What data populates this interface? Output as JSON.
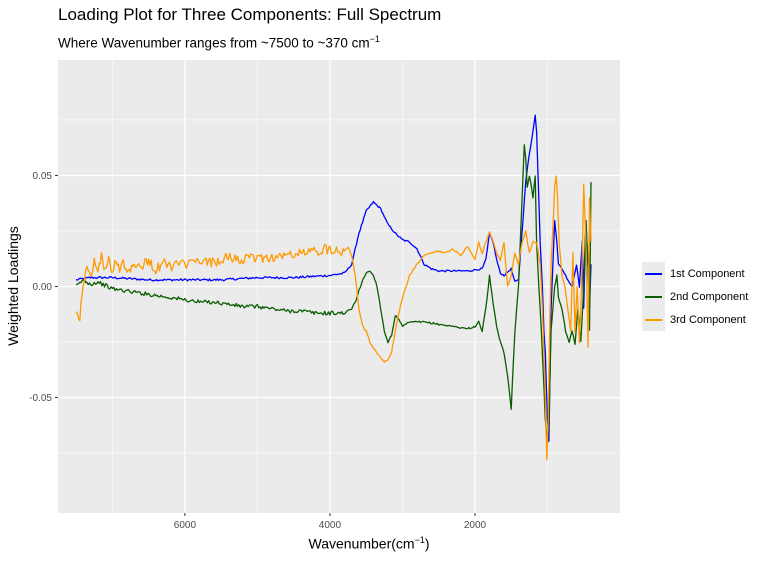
{
  "title": "Loading Plot for Three Components: Full Spectrum",
  "subtitle_main": "Where Wavenumber ranges from ~7500 to ~370 cm",
  "subtitle_sup": "−1",
  "xlabel_main": "Wavenumber(cm",
  "xlabel_sup": "−1",
  "xlabel_end": ")",
  "legend": {
    "items": [
      {
        "label": "1st Component",
        "color": "#0000ff"
      },
      {
        "label": "2nd Component",
        "color": "#0a5d00"
      },
      {
        "label": "3rd Component",
        "color": "#ff9900"
      }
    ]
  },
  "chart_data": {
    "type": "line",
    "ylabel": "Weighted Loadings",
    "x_reversed": true,
    "xlim": [
      7750,
      0
    ],
    "ylim": [
      -0.102,
      0.102
    ],
    "x_ticks": [
      {
        "value": 6000,
        "label": "6000"
      },
      {
        "value": 4000,
        "label": "4000"
      },
      {
        "value": 2000,
        "label": "2000"
      }
    ],
    "y_ticks": [
      {
        "value": 0.05,
        "label": "0.05"
      },
      {
        "value": 0.0,
        "label": "0.00"
      },
      {
        "value": -0.05,
        "label": "-0.05"
      }
    ],
    "grid": true,
    "legend_position": "right",
    "series": [
      {
        "name": "1st Component",
        "color": "#0000ff",
        "points": [
          [
            7500,
            0.003
          ],
          [
            7300,
            0.004
          ],
          [
            7000,
            0.004
          ],
          [
            6500,
            0.003
          ],
          [
            6000,
            0.003
          ],
          [
            5500,
            0.003
          ],
          [
            5000,
            0.004
          ],
          [
            4500,
            0.004
          ],
          [
            4000,
            0.005
          ],
          [
            3800,
            0.006
          ],
          [
            3700,
            0.01
          ],
          [
            3600,
            0.024
          ],
          [
            3500,
            0.034
          ],
          [
            3400,
            0.038
          ],
          [
            3300,
            0.035
          ],
          [
            3200,
            0.028
          ],
          [
            3100,
            0.024
          ],
          [
            3000,
            0.021
          ],
          [
            2900,
            0.02
          ],
          [
            2800,
            0.017
          ],
          [
            2700,
            0.01
          ],
          [
            2600,
            0.008
          ],
          [
            2500,
            0.007
          ],
          [
            2300,
            0.007
          ],
          [
            2100,
            0.007
          ],
          [
            1900,
            0.008
          ],
          [
            1850,
            0.012
          ],
          [
            1800,
            0.024
          ],
          [
            1750,
            0.02
          ],
          [
            1700,
            0.012
          ],
          [
            1650,
            0.006
          ],
          [
            1600,
            0.005
          ],
          [
            1500,
            0.008
          ],
          [
            1450,
            0.002
          ],
          [
            1400,
            0.003
          ],
          [
            1300,
            0.047
          ],
          [
            1250,
            0.06
          ],
          [
            1200,
            0.07
          ],
          [
            1170,
            0.077
          ],
          [
            1150,
            0.07
          ],
          [
            1120,
            0.04
          ],
          [
            1100,
            0.02
          ],
          [
            1070,
            0.0
          ],
          [
            1050,
            -0.02
          ],
          [
            1030,
            -0.03
          ],
          [
            1000,
            -0.06
          ],
          [
            980,
            -0.07
          ],
          [
            950,
            -0.01
          ],
          [
            900,
            0.03
          ],
          [
            870,
            0.02
          ],
          [
            850,
            0.01
          ],
          [
            800,
            0.008
          ],
          [
            750,
            0.005
          ],
          [
            700,
            0.002
          ],
          [
            660,
            0.0
          ],
          [
            600,
            0.01
          ],
          [
            560,
            0.0
          ],
          [
            520,
            0.02
          ],
          [
            500,
            -0.01
          ],
          [
            470,
            0.03
          ],
          [
            440,
            0.008
          ],
          [
            420,
            -0.01
          ],
          [
            400,
            0.01
          ]
        ]
      },
      {
        "name": "2nd Component",
        "color": "#0a5d00",
        "points": [
          [
            7500,
            0.0
          ],
          [
            7400,
            0.003
          ],
          [
            7300,
            0.001
          ],
          [
            7200,
            0.002
          ],
          [
            7000,
            -0.001
          ],
          [
            6800,
            -0.002
          ],
          [
            6600,
            -0.003
          ],
          [
            6400,
            -0.004
          ],
          [
            6200,
            -0.005
          ],
          [
            6000,
            -0.006
          ],
          [
            5800,
            -0.007
          ],
          [
            5600,
            -0.007
          ],
          [
            5400,
            -0.008
          ],
          [
            5200,
            -0.009
          ],
          [
            5000,
            -0.009
          ],
          [
            4800,
            -0.01
          ],
          [
            4600,
            -0.011
          ],
          [
            4400,
            -0.011
          ],
          [
            4200,
            -0.012
          ],
          [
            4000,
            -0.012
          ],
          [
            3800,
            -0.012
          ],
          [
            3700,
            -0.01
          ],
          [
            3650,
            -0.007
          ],
          [
            3600,
            -0.002
          ],
          [
            3550,
            0.003
          ],
          [
            3500,
            0.006
          ],
          [
            3450,
            0.007
          ],
          [
            3400,
            0.005
          ],
          [
            3350,
            0.0
          ],
          [
            3300,
            -0.01
          ],
          [
            3250,
            -0.02
          ],
          [
            3200,
            -0.025
          ],
          [
            3150,
            -0.022
          ],
          [
            3100,
            -0.013
          ],
          [
            3050,
            -0.015
          ],
          [
            3000,
            -0.018
          ],
          [
            2900,
            -0.016
          ],
          [
            2800,
            -0.016
          ],
          [
            2700,
            -0.016
          ],
          [
            2500,
            -0.017
          ],
          [
            2300,
            -0.018
          ],
          [
            2100,
            -0.019
          ],
          [
            2000,
            -0.018
          ],
          [
            1950,
            -0.016
          ],
          [
            1900,
            -0.02
          ],
          [
            1850,
            -0.01
          ],
          [
            1800,
            0.005
          ],
          [
            1750,
            -0.008
          ],
          [
            1700,
            -0.018
          ],
          [
            1650,
            -0.025
          ],
          [
            1600,
            -0.03
          ],
          [
            1550,
            -0.04
          ],
          [
            1500,
            -0.055
          ],
          [
            1450,
            -0.02
          ],
          [
            1400,
            0.0
          ],
          [
            1350,
            0.04
          ],
          [
            1320,
            0.064
          ],
          [
            1300,
            0.058
          ],
          [
            1280,
            0.045
          ],
          [
            1250,
            0.05
          ],
          [
            1220,
            0.045
          ],
          [
            1200,
            0.04
          ],
          [
            1170,
            0.05
          ],
          [
            1150,
            0.02
          ],
          [
            1120,
            0.0
          ],
          [
            1100,
            -0.01
          ],
          [
            1070,
            -0.03
          ],
          [
            1050,
            -0.045
          ],
          [
            1030,
            -0.06
          ],
          [
            1000,
            -0.07
          ],
          [
            980,
            -0.06
          ],
          [
            950,
            -0.02
          ],
          [
            900,
            0.0
          ],
          [
            870,
            0.005
          ],
          [
            850,
            -0.005
          ],
          [
            800,
            -0.01
          ],
          [
            750,
            -0.02
          ],
          [
            700,
            -0.025
          ],
          [
            660,
            -0.02
          ],
          [
            620,
            -0.026
          ],
          [
            580,
            -0.01
          ],
          [
            540,
            -0.025
          ],
          [
            500,
            0.0
          ],
          [
            470,
            0.03
          ],
          [
            440,
            0.01
          ],
          [
            420,
            -0.02
          ],
          [
            400,
            0.047
          ]
        ]
      },
      {
        "name": "3rd Component",
        "color": "#ff9900",
        "points": [
          [
            7500,
            -0.01
          ],
          [
            7450,
            -0.014
          ],
          [
            7400,
            0.002
          ],
          [
            7350,
            0.008
          ],
          [
            7300,
            0.004
          ],
          [
            7250,
            0.012
          ],
          [
            7200,
            0.006
          ],
          [
            7150,
            0.014
          ],
          [
            7100,
            0.007
          ],
          [
            7050,
            0.012
          ],
          [
            7000,
            0.005
          ],
          [
            6950,
            0.013
          ],
          [
            6900,
            0.008
          ],
          [
            6850,
            0.012
          ],
          [
            6800,
            0.006
          ],
          [
            6700,
            0.011
          ],
          [
            6600,
            0.009
          ],
          [
            6500,
            0.012
          ],
          [
            6400,
            0.007
          ],
          [
            6300,
            0.011
          ],
          [
            6200,
            0.009
          ],
          [
            6100,
            0.01
          ],
          [
            6000,
            0.01
          ],
          [
            5800,
            0.011
          ],
          [
            5600,
            0.011
          ],
          [
            5400,
            0.013
          ],
          [
            5200,
            0.012
          ],
          [
            5000,
            0.013
          ],
          [
            4800,
            0.013
          ],
          [
            4600,
            0.014
          ],
          [
            4400,
            0.015
          ],
          [
            4200,
            0.016
          ],
          [
            4000,
            0.017
          ],
          [
            3800,
            0.016
          ],
          [
            3750,
            0.018
          ],
          [
            3700,
            0.014
          ],
          [
            3650,
            0.005
          ],
          [
            3600,
            -0.01
          ],
          [
            3550,
            -0.018
          ],
          [
            3500,
            -0.02
          ],
          [
            3450,
            -0.025
          ],
          [
            3400,
            -0.028
          ],
          [
            3350,
            -0.03
          ],
          [
            3300,
            -0.032
          ],
          [
            3250,
            -0.034
          ],
          [
            3200,
            -0.033
          ],
          [
            3150,
            -0.03
          ],
          [
            3100,
            -0.02
          ],
          [
            3050,
            -0.012
          ],
          [
            3000,
            -0.005
          ],
          [
            2950,
            0.0
          ],
          [
            2900,
            0.005
          ],
          [
            2800,
            0.01
          ],
          [
            2700,
            0.014
          ],
          [
            2600,
            0.015
          ],
          [
            2500,
            0.016
          ],
          [
            2400,
            0.015
          ],
          [
            2300,
            0.017
          ],
          [
            2200,
            0.014
          ],
          [
            2100,
            0.018
          ],
          [
            2000,
            0.012
          ],
          [
            1950,
            0.02
          ],
          [
            1900,
            0.015
          ],
          [
            1850,
            0.02
          ],
          [
            1800,
            0.025
          ],
          [
            1750,
            0.02
          ],
          [
            1700,
            0.015
          ],
          [
            1650,
            0.012
          ],
          [
            1600,
            0.02
          ],
          [
            1550,
            0.0
          ],
          [
            1500,
            0.005
          ],
          [
            1450,
            0.015
          ],
          [
            1400,
            0.01
          ],
          [
            1350,
            0.02
          ],
          [
            1300,
            0.025
          ],
          [
            1250,
            0.015
          ],
          [
            1200,
            0.02
          ],
          [
            1150,
            0.02
          ],
          [
            1100,
            0.01
          ],
          [
            1070,
            -0.01
          ],
          [
            1050,
            -0.03
          ],
          [
            1030,
            -0.05
          ],
          [
            1010,
            -0.078
          ],
          [
            990,
            -0.06
          ],
          [
            970,
            -0.02
          ],
          [
            950,
            0.01
          ],
          [
            920,
            0.03
          ],
          [
            900,
            0.045
          ],
          [
            880,
            0.05
          ],
          [
            860,
            0.04
          ],
          [
            840,
            0.02
          ],
          [
            800,
            0.005
          ],
          [
            760,
            0.0
          ],
          [
            720,
            -0.01
          ],
          [
            680,
            -0.02
          ],
          [
            650,
            0.015
          ],
          [
            620,
            -0.02
          ],
          [
            590,
            0.0
          ],
          [
            560,
            -0.025
          ],
          [
            530,
            0.0
          ],
          [
            500,
            0.046
          ],
          [
            470,
            0.02
          ],
          [
            440,
            -0.027
          ],
          [
            420,
            0.04
          ],
          [
            400,
            0.02
          ]
        ]
      }
    ]
  }
}
